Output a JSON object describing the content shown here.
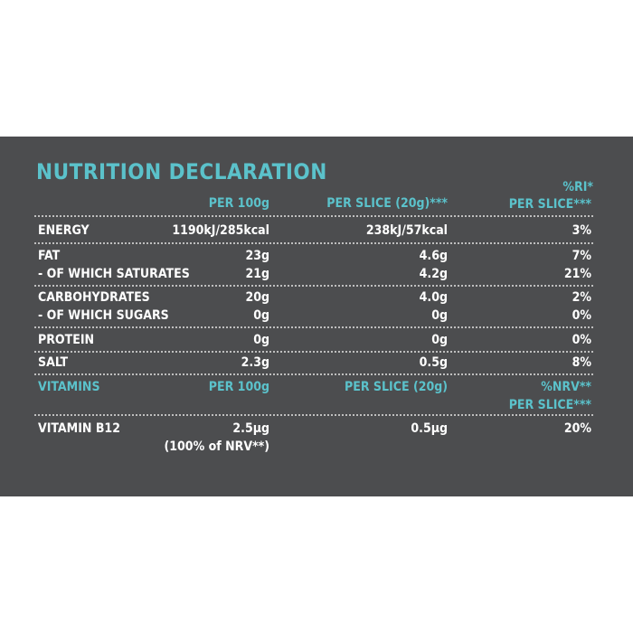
{
  "title": "NUTRITION DECLARATION",
  "header": {
    "per100": "PER 100g",
    "perSlice": "PER SLICE (20g)***",
    "ri_line1": "%RI*",
    "ri_line2": "PER SLICE***"
  },
  "rows": [
    {
      "label": "ENERGY",
      "per100": "1190kJ/285kcal",
      "perSlice": "238kJ/57kcal",
      "ri": "3%"
    },
    {
      "label": "FAT",
      "per100": "23g",
      "perSlice": "4.6g",
      "ri": "7%"
    },
    {
      "label": "- OF WHICH SATURATES",
      "per100": "21g",
      "perSlice": "4.2g",
      "ri": "21%"
    },
    {
      "label": "CARBOHYDRATES",
      "per100": "20g",
      "perSlice": "4.0g",
      "ri": "2%"
    },
    {
      "label": "- OF WHICH SUGARS",
      "per100": "0g",
      "perSlice": "0g",
      "ri": "0%"
    },
    {
      "label": "PROTEIN",
      "per100": "0g",
      "perSlice": "0g",
      "ri": "0%"
    },
    {
      "label": "SALT",
      "per100": "2.3g",
      "perSlice": "0.5g",
      "ri": "8%"
    }
  ],
  "vitamins_header": {
    "label": "VITAMINS",
    "per100": "PER 100g",
    "perSlice": "PER SLICE (20g)",
    "nrv_line1": "%NRV**",
    "nrv_line2": "PER SLICE***"
  },
  "vitamin_row": {
    "label": "VITAMIN B12",
    "per100": "2.5µg",
    "per100_note": "(100% of NRV**)",
    "perSlice": "0.5µg",
    "nrv": "20%"
  }
}
